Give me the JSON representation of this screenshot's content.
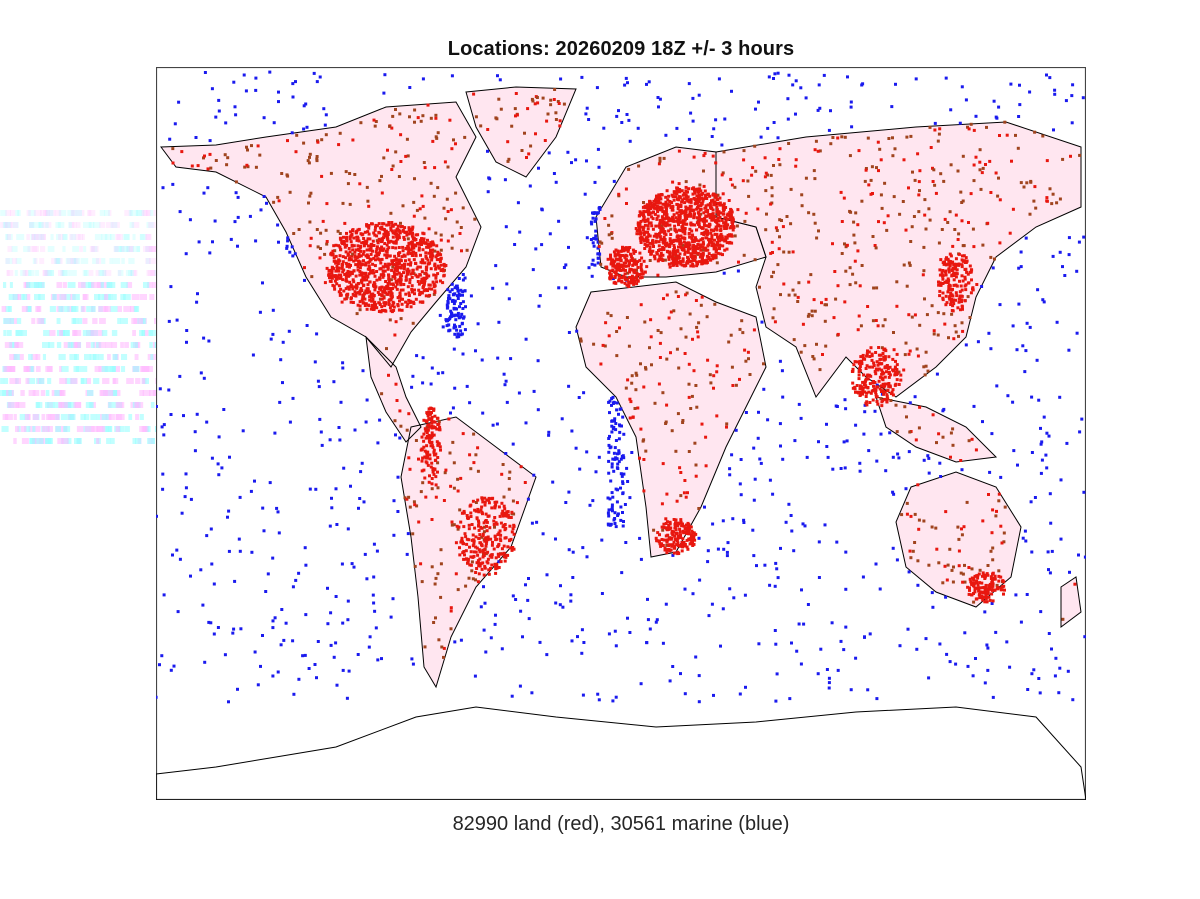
{
  "figure": {
    "title": "Locations: 20260209 18Z +/- 3 hours",
    "caption": "82990 land (red), 30561 marine (blue)"
  },
  "chart_data": {
    "type": "scatter",
    "title": "Locations: 20260209 18Z +/- 3 hours",
    "xlabel": "82990 land (red), 30561 marine (blue)",
    "ylabel": "",
    "projection": "equirectangular world map (lon -180..180, lat -90..90)",
    "grid": false,
    "legend": "none (described in x-label text)",
    "series": [
      {
        "name": "land",
        "color": "#ff0000",
        "edge_color": "#8b3a1a",
        "count": 82990
      },
      {
        "name": "marine",
        "color": "#0000ff",
        "count": 30561
      }
    ],
    "annotations": []
  },
  "colors": {
    "land_dot": "#e8170f",
    "land_dot_dark": "#a0441e",
    "marine_dot": "#1a1aee",
    "coastline": "#000000",
    "axes_border": "#444444",
    "land_tint": "#ffe6f0"
  }
}
